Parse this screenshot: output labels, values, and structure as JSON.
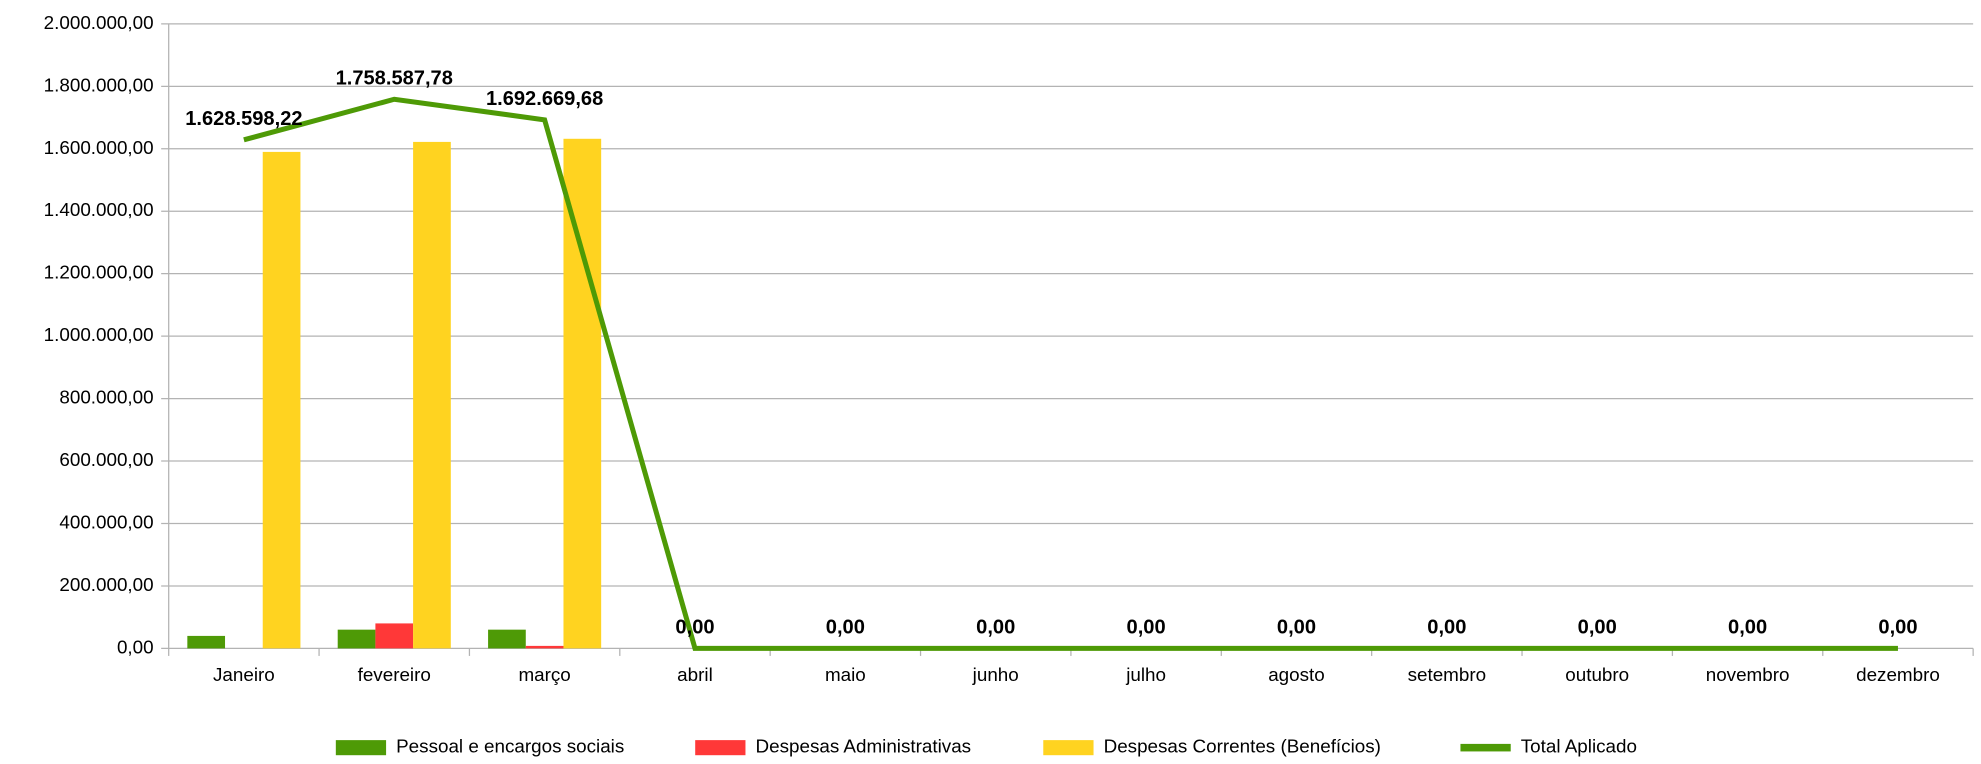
{
  "chart_data": {
    "type": "bar",
    "categories": [
      "Janeiro",
      "fevereiro",
      "março",
      "abril",
      "maio",
      "junho",
      "julho",
      "agosto",
      "setembro",
      "outubro",
      "novembro",
      "dezembro"
    ],
    "series": [
      {
        "name": "Pessoal e encargos sociais",
        "type": "bar",
        "color": "#4e9a06",
        "values": [
          40000,
          60000,
          60000,
          0,
          0,
          0,
          0,
          0,
          0,
          0,
          0,
          0
        ]
      },
      {
        "name": "Despesas Administrativas",
        "type": "bar",
        "color": "#ff3838",
        "values": [
          0,
          80000,
          8000,
          0,
          0,
          0,
          0,
          0,
          0,
          0,
          0,
          0
        ]
      },
      {
        "name": "Despesas Correntes (Benefícios)",
        "type": "bar",
        "color": "#ffd320",
        "values": [
          1590000,
          1622000,
          1632000,
          0,
          0,
          0,
          0,
          0,
          0,
          0,
          0,
          0
        ]
      },
      {
        "name": "Total Aplicado",
        "type": "line",
        "color": "#4e9a06",
        "values": [
          1628598.22,
          1758587.78,
          1692669.68,
          0,
          0,
          0,
          0,
          0,
          0,
          0,
          0,
          0
        ],
        "value_labels": [
          "1.628.598,22",
          "1.758.587,78",
          "1.692.669,68",
          "0,00",
          "0,00",
          "0,00",
          "0,00",
          "0,00",
          "0,00",
          "0,00",
          "0,00",
          "0,00"
        ]
      }
    ],
    "ylim": [
      0,
      2000000
    ],
    "yticks": [
      {
        "value": 0,
        "label": "0,00"
      },
      {
        "value": 200000,
        "label": "200.000,00"
      },
      {
        "value": 400000,
        "label": "400.000,00"
      },
      {
        "value": 600000,
        "label": "600.000,00"
      },
      {
        "value": 800000,
        "label": "800.000,00"
      },
      {
        "value": 1000000,
        "label": "1.000.000,00"
      },
      {
        "value": 1200000,
        "label": "1.200.000,00"
      },
      {
        "value": 1400000,
        "label": "1.400.000,00"
      },
      {
        "value": 1600000,
        "label": "1.600.000,00"
      },
      {
        "value": 1800000,
        "label": "1.800.000,00"
      },
      {
        "value": 2000000,
        "label": "2.000.000,00"
      }
    ],
    "grid": true,
    "legend": "bottom"
  }
}
